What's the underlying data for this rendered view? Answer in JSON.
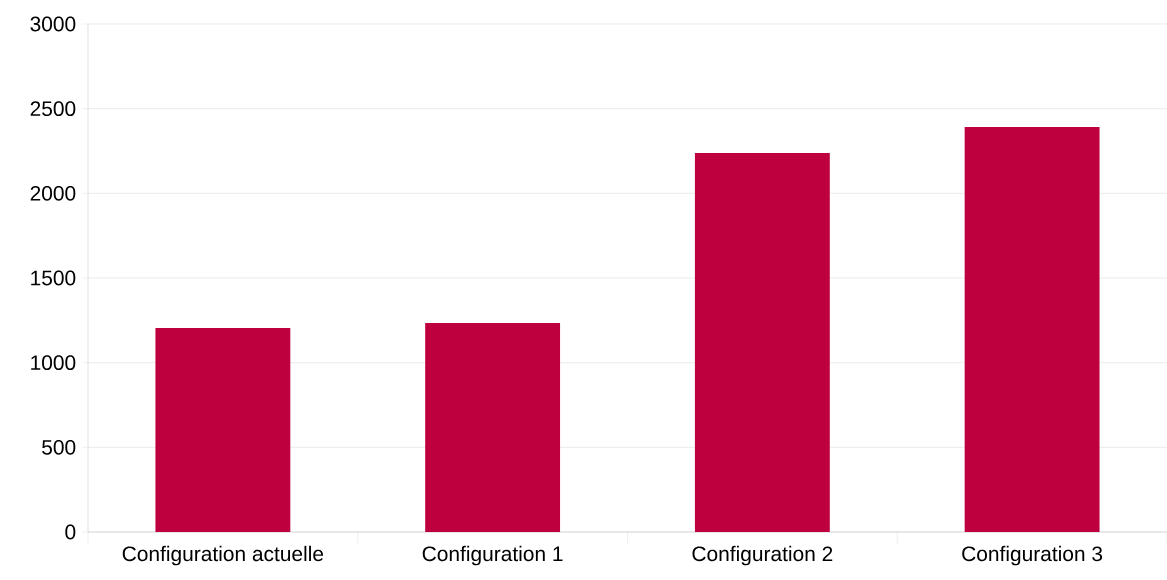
{
  "chart_data": {
    "type": "bar",
    "categories": [
      "Configuration actuelle",
      "Configuration 1",
      "Configuration 2",
      "Configuration 3"
    ],
    "values": [
      1205,
      1234,
      2238,
      2392
    ],
    "color": "#be003f",
    "ylim": [
      0,
      3000
    ],
    "yticks": [
      0,
      500,
      1000,
      1500,
      2000,
      2500,
      3000
    ],
    "grid": "y"
  }
}
